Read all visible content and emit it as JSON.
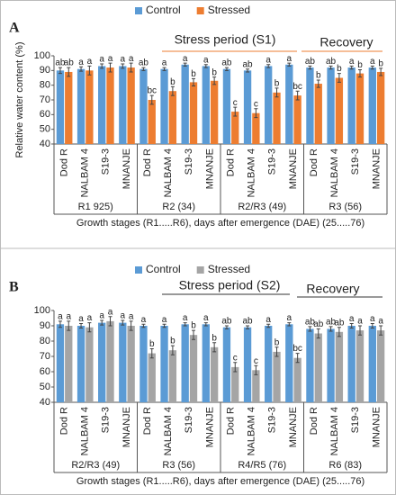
{
  "chart_data": [
    {
      "type": "bar",
      "panel": "A",
      "ylabel": "Relative water content (%)",
      "xlabel": "Growth stages (R1.....R6), days after emergence (DAE) (25.....76)",
      "categories": [
        "Dod R",
        "NALBAM 4",
        "S19-3",
        "MNANJE",
        "Dod R",
        "NALBAM 4",
        "S19-3",
        "MNANJE",
        "Dod R",
        "NALBAM 4",
        "S19-3",
        "MNANJE",
        "Dod R",
        "NALBAM 4",
        "S19-3",
        "MNANJE"
      ],
      "groups": [
        "R1 925)",
        "R2 (34)",
        "R2/R3 (49)",
        "R3 (56)"
      ],
      "series": [
        {
          "name": "Control",
          "color": "#5b9bd5",
          "values": [
            90,
            91,
            93,
            93,
            91,
            91,
            94,
            93,
            91,
            90,
            93,
            94,
            92,
            92,
            92,
            92
          ],
          "errors": [
            2,
            1.5,
            1.5,
            1.5,
            1,
            1,
            1,
            1,
            1,
            1,
            1,
            1,
            1,
            1,
            1,
            1
          ],
          "letters": [
            "ab",
            "a",
            "a",
            "a",
            "ab",
            "a",
            "a",
            "a",
            "ab",
            "ab",
            "a",
            "a",
            "ab",
            "ab",
            "a",
            "a"
          ]
        },
        {
          "name": "Stressed",
          "color": "#ed7d31",
          "values": [
            89,
            90,
            92,
            92,
            70,
            76,
            82,
            83,
            62,
            61,
            75,
            73,
            81,
            85,
            88,
            89
          ],
          "errors": [
            3,
            3,
            3,
            3,
            3,
            3,
            2.5,
            2.5,
            3,
            3,
            3,
            3,
            2.5,
            3,
            2.5,
            2.5
          ],
          "letters": [
            "ab",
            "a",
            "a",
            "a",
            "bc",
            "b",
            "b",
            "b",
            "c",
            "c",
            "b",
            "bc",
            "b",
            "b",
            "b",
            "b"
          ]
        }
      ],
      "annotations": [
        {
          "text": "Stress period (S1)"
        },
        {
          "text": "Recovery"
        }
      ],
      "annotation_line_color": "#ed7d31",
      "ylim": [
        40,
        100
      ],
      "yticks": [
        40,
        50,
        60,
        70,
        80,
        90,
        100
      ],
      "legend": "top"
    },
    {
      "type": "bar",
      "panel": "B",
      "xlabel": "Growth stages (R1.....R6), days after emergence (DAE) (25.....76)",
      "categories": [
        "Dod R",
        "NALBAM 4",
        "S19-3",
        "MNANJE",
        "Dod R",
        "NALBAM 4",
        "S19-3",
        "MNANJE",
        "Dod R",
        "NALBAM 4",
        "S19-3",
        "MNANJE",
        "Dod R",
        "NALBAM 4",
        "S19-3",
        "MNANJE"
      ],
      "groups": [
        "R2/R3 (49)",
        "R3 (56)",
        "R4/R5 (76)",
        "R6 (83)"
      ],
      "series": [
        {
          "name": "Control",
          "color": "#5b9bd5",
          "values": [
            91,
            90,
            92,
            92,
            90,
            90,
            91,
            91,
            89,
            89,
            90,
            91,
            88,
            88,
            90,
            90
          ],
          "errors": [
            2,
            1.5,
            1.5,
            1.5,
            1,
            1,
            1,
            1,
            1,
            1,
            1,
            1,
            1.5,
            1.5,
            1.5,
            1.5
          ],
          "letters": [
            "a",
            "a",
            "a",
            "a",
            "a",
            "a",
            "a",
            "a",
            "ab",
            "ab",
            "a",
            "a",
            "ab",
            "ab",
            "a",
            "a"
          ]
        },
        {
          "name": "Stressed",
          "color": "#a5a5a5",
          "values": [
            90,
            89,
            93,
            90,
            72,
            74,
            84,
            76,
            63,
            61,
            73,
            69,
            85,
            86,
            87,
            87
          ],
          "errors": [
            3,
            3,
            3,
            3,
            3,
            3,
            3,
            3,
            3,
            3,
            3,
            3,
            3,
            3,
            3,
            3
          ],
          "letters": [
            "a",
            "a",
            "a",
            "a",
            "b",
            "b",
            "b",
            "b",
            "c",
            "c",
            "b",
            "bc",
            "ab",
            "ab",
            "a",
            "a"
          ]
        }
      ],
      "annotations": [
        {
          "text": "Stress period (S2)"
        },
        {
          "text": "Recovery"
        }
      ],
      "annotation_line_color": "#333333",
      "ylim": [
        40,
        100
      ],
      "yticks": [
        40,
        50,
        60,
        70,
        80,
        90,
        100
      ],
      "legend": "top"
    }
  ]
}
